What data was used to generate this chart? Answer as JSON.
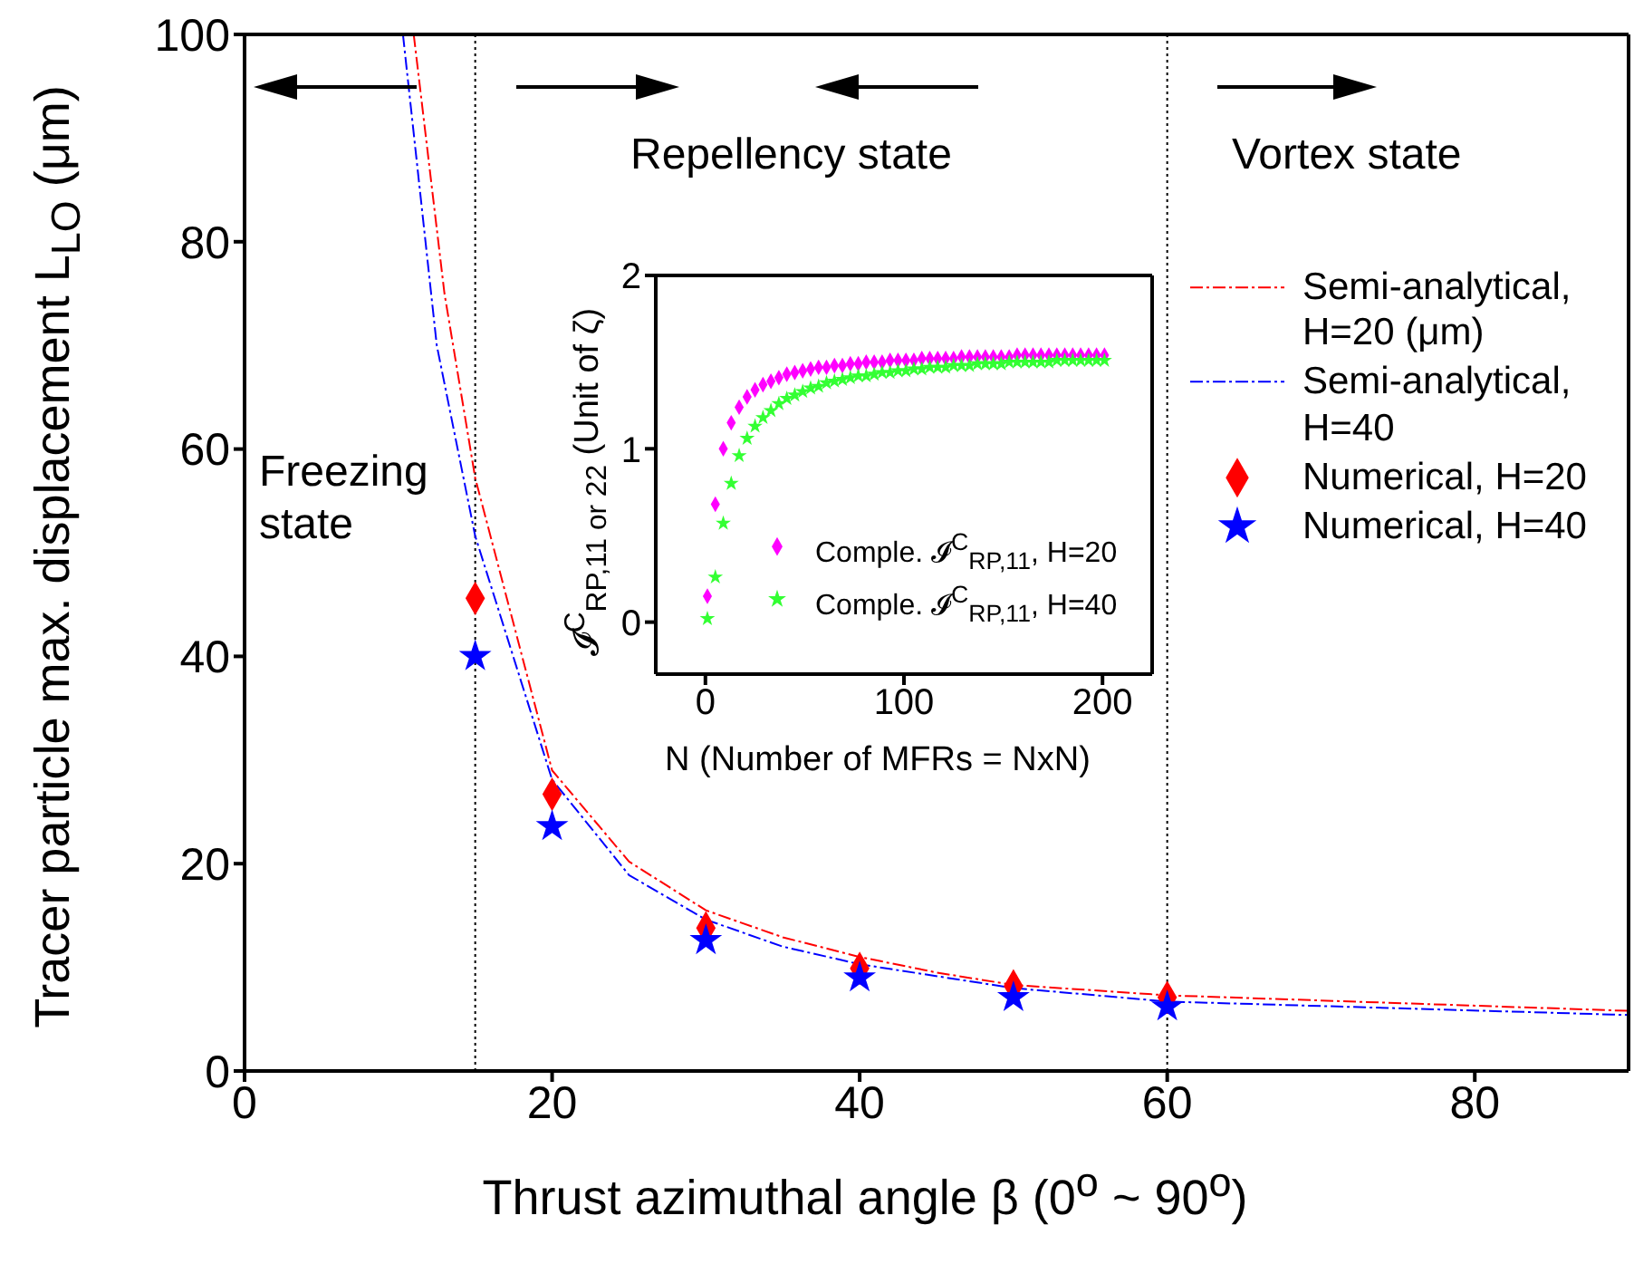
{
  "chart_data": [
    {
      "type": "line",
      "xlabel": "Thrust azimuthal angle β (0$^{o}$ ~ 90$^{o}$)",
      "ylabel": "Tracer particle max. displacement L$_{LO}$ (μm)",
      "xlim": [
        0,
        90
      ],
      "xticks": [
        0,
        20,
        40,
        60,
        80
      ],
      "ylim": [
        0,
        100
      ],
      "yticks": [
        0,
        20,
        40,
        60,
        80,
        100
      ],
      "grid": false,
      "legend": "right",
      "series": [
        {
          "name": "Semi-analytical, H=20 (μm)",
          "color": "#ff0000",
          "line_style": "dashed",
          "marker": "none",
          "x": [
            11,
            13,
            15,
            20,
            25,
            30,
            35,
            40,
            45,
            50,
            60,
            90
          ],
          "values": [
            100,
            75,
            57.2,
            29,
            20.2,
            15.5,
            12.9,
            11,
            9.5,
            8.3,
            7.3,
            5.8
          ]
        },
        {
          "name": "Semi-analytical, H=40",
          "color": "#0000ff",
          "line_style": "dashed",
          "marker": "none",
          "x": [
            10.3,
            12.5,
            15,
            20,
            25,
            30,
            35,
            40,
            50,
            60,
            90
          ],
          "values": [
            100,
            70,
            51.6,
            28.1,
            18.9,
            14.6,
            12,
            10.3,
            8,
            6.7,
            5.4
          ]
        },
        {
          "name": "Numerical, H=20",
          "type": "scatter",
          "color": "#ff0000",
          "marker": "diamond",
          "x": [
            15,
            20,
            30,
            40,
            50,
            60
          ],
          "values": [
            45.6,
            26.7,
            13.8,
            9.9,
            8.2,
            7.1
          ]
        },
        {
          "name": "Numerical, H=40",
          "type": "scatter",
          "color": "#0000ff",
          "marker": "star",
          "x": [
            15,
            20,
            30,
            40,
            50,
            60
          ],
          "values": [
            40,
            23.6,
            12.6,
            9,
            7.1,
            6.2
          ]
        }
      ],
      "ref_lines": [
        {
          "axis": "x",
          "value": 15,
          "color": "#000000",
          "line_style": "dotted"
        },
        {
          "axis": "x",
          "value": 60,
          "color": "#000000",
          "line_style": "dotted"
        }
      ],
      "annotations": [
        "Freezing state",
        "Repellency state",
        "Vortex state"
      ]
    },
    {
      "type": "scatter",
      "xlabel": "N (Number of MFRs = NxN)",
      "ylabel": "𝓘$^{C}$$_{RP,11 or 22}$ (Unit of ζ)",
      "xlim": [
        -25,
        225
      ],
      "xticks": [
        0,
        100,
        200
      ],
      "ylim": [
        -0.3,
        2
      ],
      "yticks": [
        0,
        1,
        2
      ],
      "grid": false,
      "legend": "bottom right",
      "series": [
        {
          "name": "Comple. 𝓘$^{C}$$_{RP,11}$, H=20",
          "color": "#ff00ff",
          "marker": "diamond",
          "x": [
            1,
            5,
            9,
            13,
            17,
            21,
            25,
            29,
            33,
            37,
            41,
            45,
            49,
            53,
            57,
            61,
            65,
            69,
            73,
            77,
            81,
            85,
            89,
            93,
            97,
            101,
            105,
            109,
            113,
            117,
            121,
            125,
            129,
            133,
            137,
            141,
            145,
            149,
            153,
            157,
            161,
            165,
            169,
            173,
            177,
            181,
            185,
            189,
            193,
            197,
            201
          ],
          "values": [
            0.15,
            0.68,
            1.0,
            1.15,
            1.24,
            1.3,
            1.34,
            1.37,
            1.39,
            1.41,
            1.43,
            1.44,
            1.45,
            1.46,
            1.47,
            1.47,
            1.48,
            1.48,
            1.49,
            1.49,
            1.5,
            1.5,
            1.5,
            1.51,
            1.51,
            1.51,
            1.51,
            1.52,
            1.52,
            1.52,
            1.52,
            1.52,
            1.53,
            1.53,
            1.53,
            1.53,
            1.53,
            1.53,
            1.53,
            1.54,
            1.54,
            1.54,
            1.54,
            1.54,
            1.54,
            1.54,
            1.54,
            1.54,
            1.54,
            1.54,
            1.54
          ]
        },
        {
          "name": "Comple. 𝓘$^{C}$$_{RP,11}$, H=40",
          "color": "#33ff33",
          "marker": "star",
          "x": [
            1,
            5,
            9,
            13,
            17,
            21,
            25,
            29,
            33,
            37,
            41,
            45,
            49,
            53,
            57,
            61,
            65,
            69,
            73,
            77,
            81,
            85,
            89,
            93,
            97,
            101,
            105,
            109,
            113,
            117,
            121,
            125,
            129,
            133,
            137,
            141,
            145,
            149,
            153,
            157,
            161,
            165,
            169,
            173,
            177,
            181,
            185,
            189,
            193,
            197,
            201
          ],
          "values": [
            0.02,
            0.26,
            0.57,
            0.8,
            0.96,
            1.06,
            1.13,
            1.18,
            1.22,
            1.26,
            1.29,
            1.31,
            1.33,
            1.35,
            1.36,
            1.38,
            1.39,
            1.4,
            1.41,
            1.42,
            1.42,
            1.43,
            1.44,
            1.44,
            1.45,
            1.45,
            1.46,
            1.46,
            1.47,
            1.47,
            1.47,
            1.48,
            1.48,
            1.48,
            1.49,
            1.49,
            1.49,
            1.49,
            1.5,
            1.5,
            1.5,
            1.5,
            1.5,
            1.5,
            1.51,
            1.51,
            1.51,
            1.51,
            1.51,
            1.51,
            1.51
          ]
        }
      ]
    }
  ]
}
